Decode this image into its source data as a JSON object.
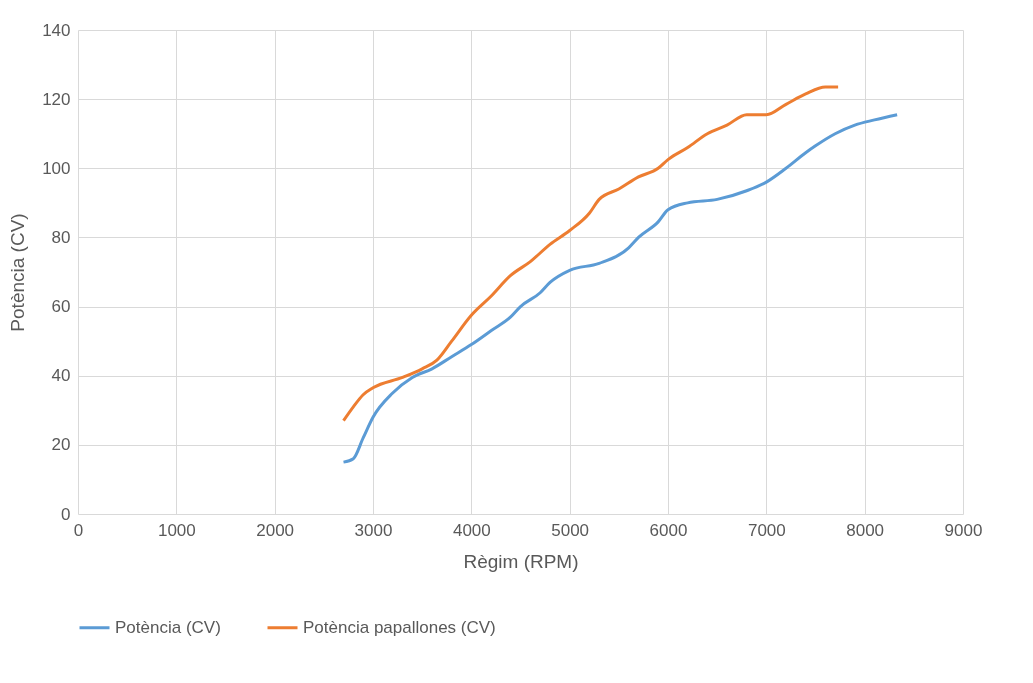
{
  "chart_data": {
    "type": "line",
    "xlabel": "Règim (RPM)",
    "ylabel": "Potència (CV)",
    "xlim": [
      0,
      9000
    ],
    "xticks": [
      0,
      1000,
      2000,
      3000,
      4000,
      5000,
      6000,
      7000,
      8000,
      9000
    ],
    "ylim": [
      0,
      140
    ],
    "yticks": [
      0,
      20,
      40,
      60,
      80,
      100,
      120,
      140
    ],
    "grid": true,
    "legend": "bottom",
    "marker": "none",
    "line_style": "solid",
    "series": [
      {
        "name": "Potència (CV)",
        "color": "#5b9bd5",
        "x": [
          2700,
          2800,
          2900,
          3000,
          3200,
          3400,
          3600,
          3800,
          4000,
          4200,
          4400,
          4500,
          4700,
          4800,
          5000,
          5300,
          5600,
          5700,
          5900,
          6000,
          6200,
          6500,
          6800,
          7000,
          7200,
          7400,
          7500,
          7700,
          7900,
          8100,
          8330
        ],
        "values": [
          15,
          16,
          22,
          28,
          35,
          39.5,
          42,
          45.5,
          49,
          53,
          57,
          60,
          64,
          67,
          70.5,
          72.5,
          77,
          80,
          84.5,
          88,
          90,
          91,
          93.5,
          96,
          100,
          104.5,
          106.5,
          110,
          112.5,
          114,
          115.5
        ]
      },
      {
        "name": "Potència papallones (CV)",
        "color": "#ed7d31",
        "x": [
          2700,
          2800,
          2900,
          3000,
          3300,
          3500,
          3650,
          3800,
          4000,
          4200,
          4400,
          4600,
          4800,
          5000,
          5200,
          5300,
          5500,
          5700,
          5900,
          6000,
          6200,
          6400,
          6600,
          6800,
          7000,
          7200,
          7400,
          7600,
          7730
        ],
        "values": [
          27,
          31,
          34.5,
          36.5,
          39.5,
          42,
          44.5,
          50,
          57.5,
          63,
          69,
          73,
          78,
          82,
          87,
          91,
          94,
          97.5,
          100,
          102.5,
          106,
          110,
          112.5,
          115.5,
          115.5,
          118.5,
          121.5,
          123.5,
          123.5
        ]
      }
    ]
  }
}
